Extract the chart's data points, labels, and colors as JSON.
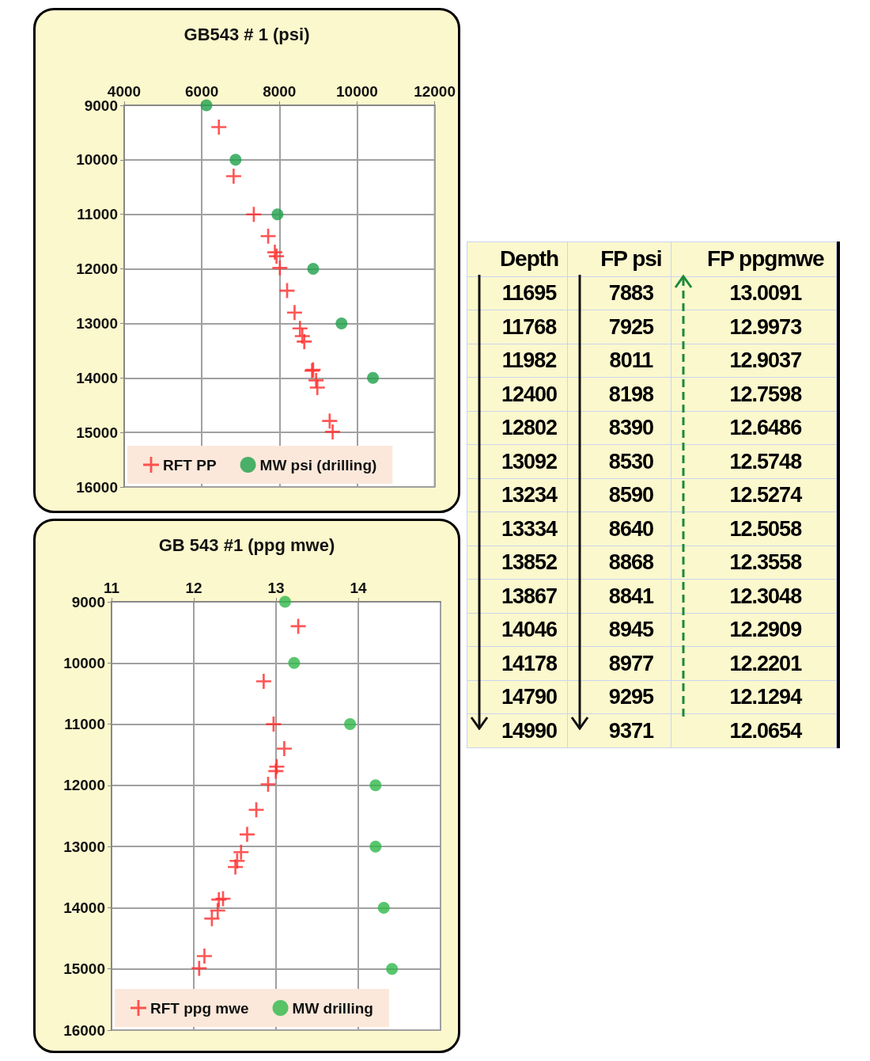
{
  "chart_data": [
    {
      "type": "scatter",
      "title": "GB543 # 1 (psi)",
      "xlim": [
        4000,
        12000
      ],
      "xticks": [
        4000,
        6000,
        8000,
        10000,
        12000
      ],
      "ylim": [
        16000,
        9000
      ],
      "yticks": [
        9000,
        10000,
        11000,
        12000,
        13000,
        14000,
        15000,
        16000
      ],
      "grid": true,
      "legend": "bottom",
      "series": [
        {
          "name": "RFT PP",
          "color": "#ff2a2a",
          "marker": "cross",
          "x": [
            6440,
            6820,
            7340,
            7710,
            7883,
            7925,
            8011,
            8198,
            8390,
            8530,
            8590,
            8640,
            8868,
            8841,
            8945,
            8977,
            9295,
            9371
          ],
          "values": [
            9400,
            10300,
            11000,
            11400,
            11695,
            11768,
            11982,
            12400,
            12802,
            13092,
            13234,
            13334,
            13852,
            13867,
            14046,
            14178,
            14790,
            14990
          ]
        },
        {
          "name": "MW psi (drilling)",
          "color": "#1ea04a",
          "marker": "circle",
          "x": [
            6120,
            6870,
            7950,
            8870,
            9600,
            10410
          ],
          "values": [
            9000,
            10000,
            11000,
            12000,
            13000,
            14000
          ]
        }
      ]
    },
    {
      "type": "scatter",
      "title": "GB 543 #1 (ppg mwe)",
      "xlim": [
        11,
        15
      ],
      "xticks": [
        11,
        12,
        13,
        14
      ],
      "ylim": [
        16000,
        9000
      ],
      "yticks": [
        9000,
        10000,
        11000,
        12000,
        13000,
        14000,
        15000,
        16000
      ],
      "grid": true,
      "legend": "bottom",
      "series": [
        {
          "name": "RFT ppg mwe",
          "color": "#ff2a2a",
          "marker": "cross",
          "x": [
            13.27,
            12.85,
            12.97,
            13.1,
            13.0091,
            12.9973,
            12.9037,
            12.7598,
            12.6486,
            12.5748,
            12.5274,
            12.5058,
            12.3558,
            12.3048,
            12.2909,
            12.2201,
            12.1294,
            12.0654
          ],
          "values": [
            9400,
            10300,
            11000,
            11400,
            11695,
            11768,
            11982,
            12400,
            12802,
            13092,
            13234,
            13334,
            13852,
            13867,
            14046,
            14178,
            14790,
            14990
          ]
        },
        {
          "name": "MW drilling",
          "color": "#2fb84a",
          "marker": "circle",
          "x": [
            13.11,
            13.22,
            13.9,
            14.21,
            14.21,
            14.31,
            14.41
          ],
          "values": [
            9000,
            10000,
            11000,
            12000,
            13000,
            14000,
            15000
          ]
        }
      ]
    },
    {
      "type": "other",
      "categories": [
        "Depth",
        "FP psi",
        "FP ppgmwe"
      ],
      "cell_labels": [
        [
          "11695",
          "7883",
          "13.0091"
        ],
        [
          "11768",
          "7925",
          "12.9973"
        ],
        [
          "11982",
          "8011",
          "12.9037"
        ],
        [
          "12400",
          "8198",
          "12.7598"
        ],
        [
          "12802",
          "8390",
          "12.6486"
        ],
        [
          "13092",
          "8530",
          "12.5748"
        ],
        [
          "13234",
          "8590",
          "12.5274"
        ],
        [
          "13334",
          "8640",
          "12.5058"
        ],
        [
          "13852",
          "8868",
          "12.3558"
        ],
        [
          "13867",
          "8841",
          "12.3048"
        ],
        [
          "14046",
          "8945",
          "12.2909"
        ],
        [
          "14178",
          "8977",
          "12.2201"
        ],
        [
          "14790",
          "9295",
          "12.1294"
        ],
        [
          "14990",
          "9371",
          "12.0654"
        ]
      ]
    }
  ]
}
